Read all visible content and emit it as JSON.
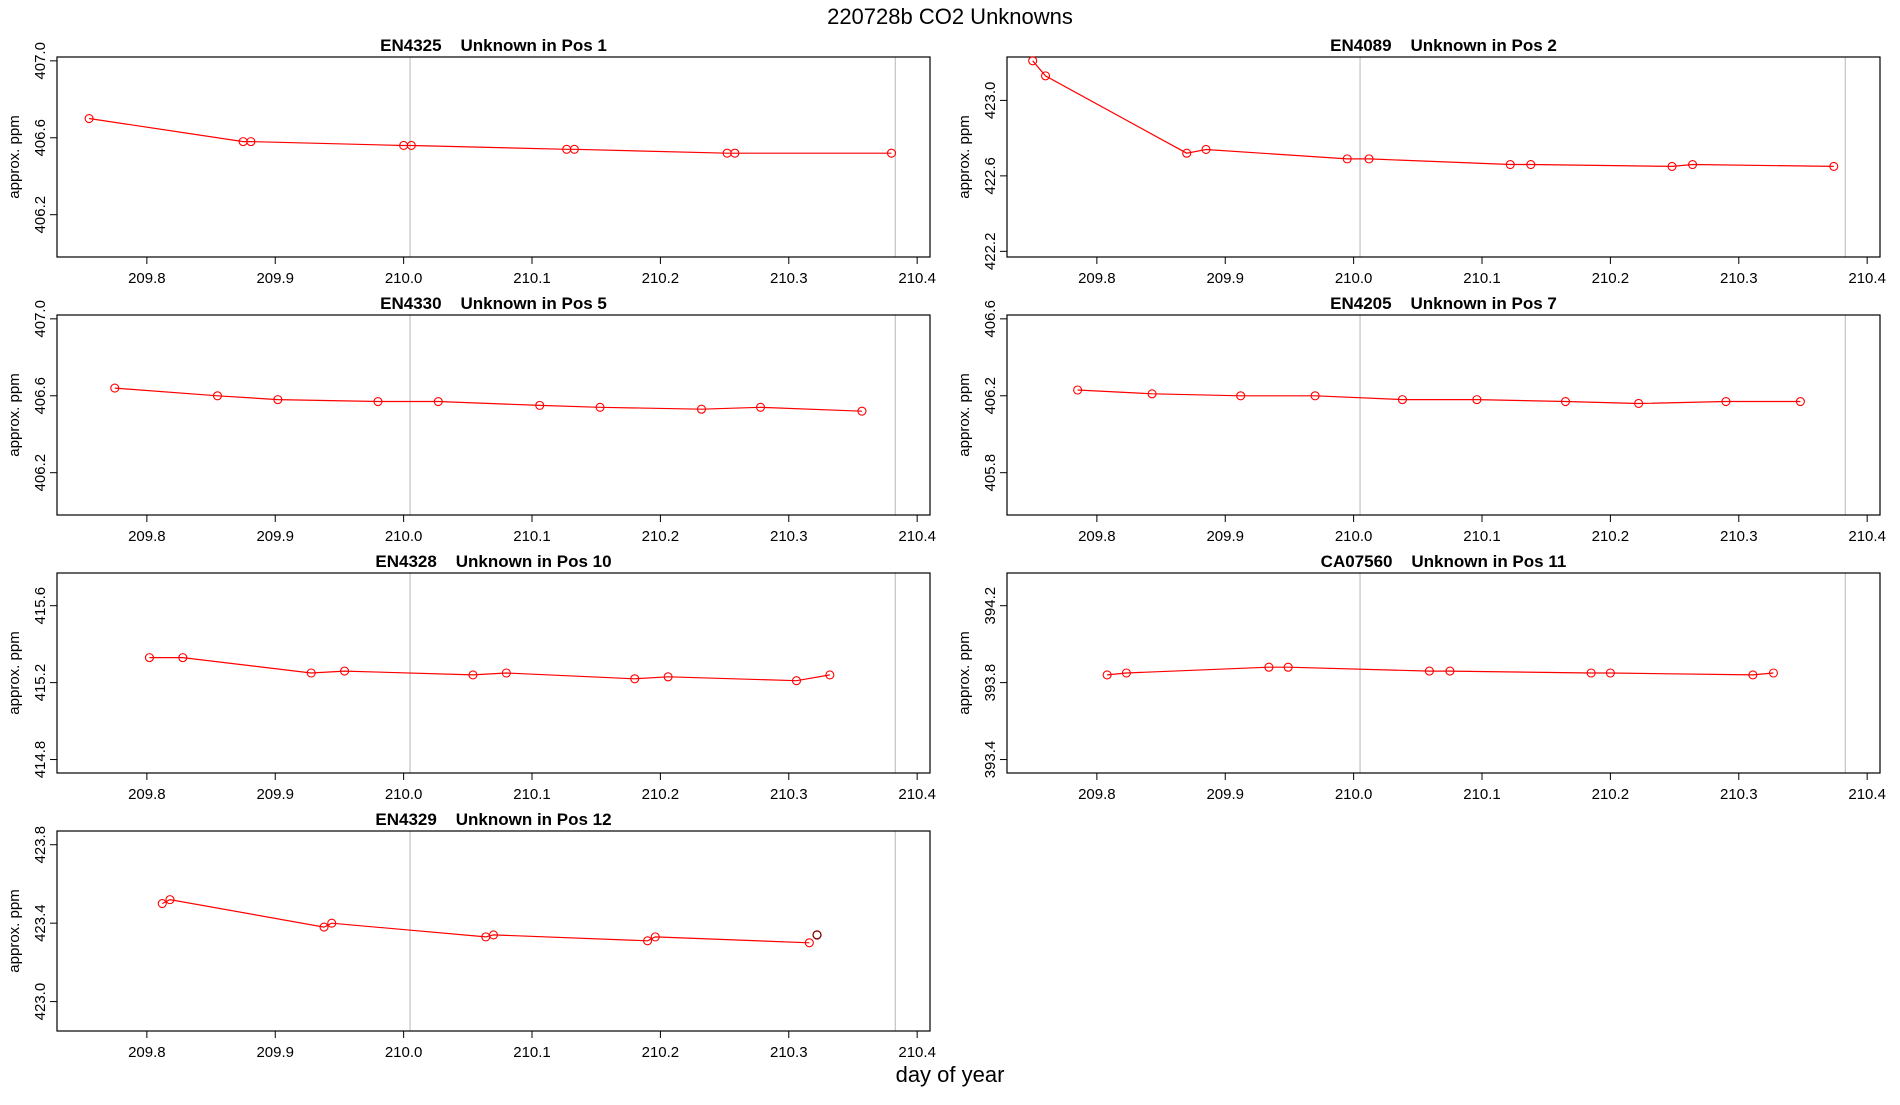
{
  "figure": {
    "title": "220728b  CO2 Unknowns",
    "xlabel": "day of year"
  },
  "colors": {
    "series": "#ff0000",
    "frame": "#000000",
    "refline": "#c8c8c8",
    "highlight_point": "#800000"
  },
  "chart_data": [
    {
      "type": "line",
      "title": "EN4325    Unknown in Pos 1",
      "xlabel": "",
      "ylabel": "approx. ppm",
      "xlim": [
        209.73,
        210.41
      ],
      "ylim": [
        405.98,
        407.02
      ],
      "xticks": [
        "209.8",
        "209.9",
        "210.0",
        "210.1",
        "210.2",
        "210.3",
        "210.4"
      ],
      "yticks": [
        "406.2",
        "406.6",
        "407.0"
      ],
      "reference_x": [
        210.005,
        210.383
      ],
      "x": [
        209.755,
        209.875,
        209.881,
        210.0,
        210.006,
        210.127,
        210.133,
        210.252,
        210.258,
        210.38
      ],
      "y": [
        406.7,
        406.58,
        406.58,
        406.56,
        406.56,
        406.54,
        406.54,
        406.52,
        406.52,
        406.52
      ]
    },
    {
      "type": "line",
      "title": "EN4089    Unknown in Pos 2",
      "xlabel": "",
      "ylabel": "approx. ppm",
      "xlim": [
        209.73,
        210.41
      ],
      "ylim": [
        422.17,
        423.23
      ],
      "xticks": [
        "209.8",
        "209.9",
        "210.0",
        "210.1",
        "210.2",
        "210.3",
        "210.4"
      ],
      "yticks": [
        "422.2",
        "422.6",
        "423.0"
      ],
      "reference_x": [
        210.005,
        210.383
      ],
      "x": [
        209.75,
        209.76,
        209.87,
        209.885,
        209.995,
        210.012,
        210.122,
        210.138,
        210.248,
        210.264,
        210.374
      ],
      "y": [
        423.21,
        423.13,
        422.72,
        422.74,
        422.69,
        422.69,
        422.66,
        422.66,
        422.65,
        422.66,
        422.65
      ]
    },
    {
      "type": "line",
      "title": "EN4330    Unknown in Pos 5",
      "xlabel": "",
      "ylabel": "approx. ppm",
      "xlim": [
        209.73,
        210.41
      ],
      "ylim": [
        405.98,
        407.02
      ],
      "xticks": [
        "209.8",
        "209.9",
        "210.0",
        "210.1",
        "210.2",
        "210.3",
        "210.4"
      ],
      "yticks": [
        "406.2",
        "406.6",
        "407.0"
      ],
      "reference_x": [
        210.005,
        210.383
      ],
      "x": [
        209.775,
        209.855,
        209.902,
        209.98,
        210.027,
        210.106,
        210.153,
        210.232,
        210.278,
        210.357
      ],
      "y": [
        406.64,
        406.6,
        406.58,
        406.57,
        406.57,
        406.55,
        406.54,
        406.53,
        406.54,
        406.52
      ]
    },
    {
      "type": "line",
      "title": "EN4205    Unknown in Pos 7",
      "xlabel": "",
      "ylabel": "approx. ppm",
      "xlim": [
        209.73,
        210.41
      ],
      "ylim": [
        405.58,
        406.62
      ],
      "xticks": [
        "209.8",
        "209.9",
        "210.0",
        "210.1",
        "210.2",
        "210.3",
        "210.4"
      ],
      "yticks": [
        "405.8",
        "406.2",
        "406.6"
      ],
      "reference_x": [
        210.005,
        210.383
      ],
      "x": [
        209.785,
        209.843,
        209.912,
        209.97,
        210.038,
        210.096,
        210.165,
        210.222,
        210.29,
        210.348
      ],
      "y": [
        406.23,
        406.21,
        406.2,
        406.2,
        406.18,
        406.18,
        406.17,
        406.16,
        406.17,
        406.17
      ]
    },
    {
      "type": "line",
      "title": "EN4328    Unknown in Pos 10",
      "xlabel": "",
      "ylabel": "approx. ppm",
      "xlim": [
        209.73,
        210.41
      ],
      "ylim": [
        414.73,
        415.77
      ],
      "xticks": [
        "209.8",
        "209.9",
        "210.0",
        "210.1",
        "210.2",
        "210.3",
        "210.4"
      ],
      "yticks": [
        "414.8",
        "415.2",
        "415.6"
      ],
      "reference_x": [
        210.005,
        210.383
      ],
      "x": [
        209.802,
        209.828,
        209.928,
        209.954,
        210.054,
        210.08,
        210.18,
        210.206,
        210.306,
        210.332
      ],
      "y": [
        415.33,
        415.33,
        415.25,
        415.26,
        415.24,
        415.25,
        415.22,
        415.23,
        415.21,
        415.24
      ]
    },
    {
      "type": "line",
      "title": "CA07560    Unknown in Pos 11",
      "xlabel": "",
      "ylabel": "approx. ppm",
      "xlim": [
        209.73,
        210.41
      ],
      "ylim": [
        393.33,
        394.37
      ],
      "xticks": [
        "209.8",
        "209.9",
        "210.0",
        "210.1",
        "210.2",
        "210.3",
        "210.4"
      ],
      "yticks": [
        "393.4",
        "393.8",
        "394.2"
      ],
      "reference_x": [
        210.005,
        210.383
      ],
      "x": [
        209.808,
        209.823,
        209.934,
        209.949,
        210.059,
        210.075,
        210.185,
        210.2,
        210.311,
        210.327
      ],
      "y": [
        393.84,
        393.85,
        393.88,
        393.88,
        393.86,
        393.86,
        393.85,
        393.85,
        393.84,
        393.85
      ]
    },
    {
      "type": "line",
      "title": "EN4329    Unknown in Pos 12",
      "xlabel": "",
      "ylabel": "approx. ppm",
      "xlim": [
        209.73,
        210.41
      ],
      "ylim": [
        422.85,
        423.87
      ],
      "xticks": [
        "209.8",
        "209.9",
        "210.0",
        "210.1",
        "210.2",
        "210.3",
        "210.4"
      ],
      "yticks": [
        "423.0",
        "423.4",
        "423.8"
      ],
      "reference_x": [
        210.005,
        210.383
      ],
      "x": [
        209.812,
        209.818,
        209.938,
        209.944,
        210.064,
        210.07,
        210.19,
        210.196,
        210.316
      ],
      "y": [
        423.5,
        423.52,
        423.38,
        423.4,
        423.33,
        423.34,
        423.31,
        423.33,
        423.3
      ],
      "extra_point": {
        "x": 210.322,
        "y": 423.34
      }
    }
  ]
}
